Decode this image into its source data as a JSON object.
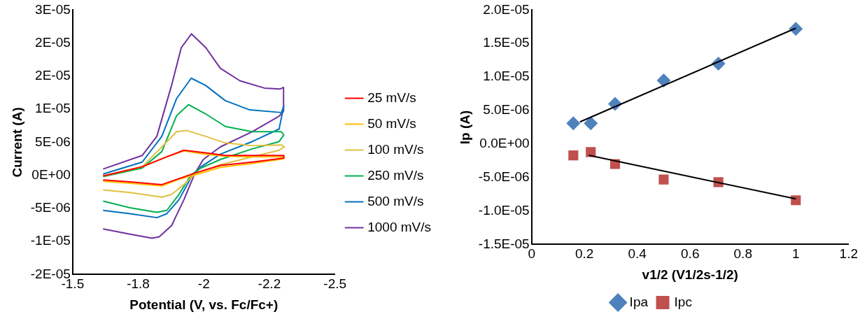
{
  "chart_data": [
    {
      "type": "line",
      "xlabel": "Potential (V, vs. Fc/Fc+)",
      "ylabel": "Current (A)",
      "xlim": [
        -1.5,
        -2.5
      ],
      "xticks": [
        -1.5,
        {
          "value": -1.75,
          "label": "-1.8"
        },
        -2,
        {
          "value": -2.25,
          "label": "-2.2"
        },
        -2.5
      ],
      "ylim": [
        -1.5e-05,
        2.5e-05
      ],
      "yticks": [
        {
          "value": -1.5e-05,
          "label": "-2E-05"
        },
        {
          "value": -1e-05,
          "label": "-1E-05"
        },
        {
          "value": -5e-06,
          "label": "-5E-06"
        },
        {
          "value": 0,
          "label": "0E+00"
        },
        {
          "value": 5e-06,
          "label": "5E-06"
        },
        {
          "value": 1e-05,
          "label": "1E-05"
        },
        {
          "value": 1.5e-05,
          "label": "2E-05"
        },
        {
          "value": 2e-05,
          "label": "2E-05"
        },
        {
          "value": 2.5e-05,
          "label": "3E-05"
        }
      ],
      "grid": false,
      "legend": "right",
      "marker": "none",
      "line_style": "solid",
      "series": [
        {
          "name": "25 mV/s",
          "color": "#ff0000",
          "x": [
            -1.616,
            -1.765,
            -1.859,
            -1.924,
            -2.007,
            -2.082,
            -2.184,
            -2.305,
            -2.305,
            -2.184,
            -2.063,
            -1.97,
            -1.905,
            -1.84,
            -1.719,
            -1.616
          ],
          "values": [
            -1e-07,
            1.3e-06,
            2.8e-06,
            3.8e-06,
            3.4e-06,
            3e-06,
            3e-06,
            3e-06,
            2.6e-06,
            2e-06,
            1.5e-06,
            4e-07,
            -5e-07,
            -1.4e-06,
            -1e-06,
            -7e-07
          ]
        },
        {
          "name": "50 mV/s",
          "color": "#ffc000",
          "x": [
            -1.616,
            -1.765,
            -1.859,
            -1.924,
            -2.007,
            -2.082,
            -2.184,
            -2.305,
            -2.305,
            -2.184,
            -2.063,
            -1.97,
            -1.905,
            -1.84,
            -1.719,
            -1.616
          ],
          "values": [
            -1e-07,
            1.3e-06,
            2.8e-06,
            3.7e-06,
            3.2e-06,
            2.9e-06,
            2.8e-06,
            2.8e-06,
            2.5e-06,
            1.8e-06,
            1.2e-06,
            1e-07,
            -6e-07,
            -1.6e-06,
            -1.2e-06,
            -9e-07
          ]
        },
        {
          "name": "100 mV/s",
          "color": "#e0c040",
          "x": [
            -1.616,
            -1.765,
            -1.84,
            -1.896,
            -1.933,
            -2.007,
            -2.082,
            -2.184,
            -2.296,
            -2.307,
            -2.287,
            -2.184,
            -2.063,
            -1.97,
            -1.924,
            -1.877,
            -1.84,
            -1.719,
            -1.616
          ],
          "values": [
            -1e-07,
            1.3e-06,
            4.3e-06,
            6.6e-06,
            6.8e-06,
            5.9e-06,
            4.9e-06,
            4.5e-06,
            4.6e-06,
            4.3e-06,
            3.8e-06,
            2.8e-06,
            1.6e-06,
            3e-07,
            -1.4e-06,
            -2.9e-06,
            -3.3e-06,
            -2.6e-06,
            -2.2e-06
          ]
        },
        {
          "name": "250 mV/s",
          "color": "#00b050",
          "x": [
            -1.616,
            -1.765,
            -1.84,
            -1.896,
            -1.942,
            -2.007,
            -2.082,
            -2.184,
            -2.296,
            -2.305,
            -2.287,
            -2.184,
            -2.063,
            -1.989,
            -1.952,
            -1.905,
            -1.859,
            -1.821,
            -1.719,
            -1.616
          ],
          "values": [
            -2e-07,
            1.1e-06,
            3.6e-06,
            9e-06,
            1.07e-05,
            9.3e-06,
            7.4e-06,
            6.6e-06,
            6.6e-06,
            6.1e-06,
            5.1e-06,
            4e-06,
            2.4e-06,
            1.1e-06,
            1e-07,
            -2.9e-06,
            -5.3e-06,
            -5.6e-06,
            -4.9e-06,
            -3.9e-06
          ]
        },
        {
          "name": "500 mV/s",
          "color": "#0070c0",
          "x": [
            -1.616,
            -1.765,
            -1.84,
            -1.896,
            -1.952,
            -2.007,
            -2.082,
            -2.175,
            -2.296,
            -2.305,
            -2.287,
            -2.184,
            -2.063,
            -1.989,
            -1.952,
            -1.905,
            -1.859,
            -1.821,
            -1.719,
            -1.616
          ],
          "values": [
            2e-07,
            2e-06,
            5.9e-06,
            1.16e-05,
            1.47e-05,
            1.36e-05,
            1.13e-05,
            9.9e-06,
            9.5e-06,
            1.05e-05,
            7e-06,
            5.1e-06,
            3.2e-06,
            1.3e-06,
            -3e-07,
            -3.7e-06,
            -5.8e-06,
            -6.4e-06,
            -5.8e-06,
            -5.3e-06
          ]
        },
        {
          "name": "1000 mV/s",
          "color": "#7030a0",
          "x": [
            -1.616,
            -1.765,
            -1.821,
            -1.877,
            -1.914,
            -1.953,
            -2.008,
            -2.063,
            -2.138,
            -2.231,
            -2.291,
            -2.304,
            -2.304,
            -2.287,
            -2.184,
            -2.063,
            -1.998,
            -1.966,
            -1.924,
            -1.877,
            -1.83,
            -1.803,
            -1.719,
            -1.616
          ],
          "values": [
            9.6e-07,
            3e-06,
            5.9e-06,
            1.36e-05,
            1.93e-05,
            2.14e-05,
            1.93e-05,
            1.62e-05,
            1.43e-05,
            1.32e-05,
            1.305e-05,
            1.33e-05,
            9.7e-06,
            8.95e-06,
            6.6e-06,
            4.3e-06,
            2.4e-06,
            3e-07,
            -3.7e-06,
            -7.6e-06,
            -9.3e-06,
            -9.5e-06,
            -8.9e-06,
            -8.1e-06
          ]
        }
      ]
    },
    {
      "type": "scatter",
      "xlabel": "v1/2 (V1/2s-1/2)",
      "ylabel": "Ip (A)",
      "xlim": [
        0,
        1.2
      ],
      "xticks": [
        0,
        0.2,
        0.4,
        0.6,
        0.8,
        1,
        1.2
      ],
      "ylim": [
        -1.5e-05,
        2e-05
      ],
      "yticks": [
        {
          "value": -1.5e-05,
          "label": "-1.5E-05"
        },
        {
          "value": -1e-05,
          "label": "-1.0E-05"
        },
        {
          "value": -5e-06,
          "label": "-5.0E-06"
        },
        {
          "value": 0,
          "label": "0.0E+00"
        },
        {
          "value": 5e-06,
          "label": "5.0E-06"
        },
        {
          "value": 1e-05,
          "label": "1.0E-05"
        },
        {
          "value": 1.5e-05,
          "label": "1.5E-05"
        },
        {
          "value": 2e-05,
          "label": "2.0E-05"
        }
      ],
      "grid": false,
      "legend": "bottom",
      "series": [
        {
          "type": "line",
          "color": "#000000",
          "marker": "none",
          "x": [
            0.183,
            1
          ],
          "values": [
            3.3e-06,
            1.73e-05
          ]
        },
        {
          "type": "line",
          "color": "#000000",
          "marker": "none",
          "x": [
            0.217,
            1
          ],
          "values": [
            -1.7e-06,
            -8.2e-06
          ]
        },
        {
          "name": "Ipa",
          "type": "scatter",
          "color": "#4f81bd",
          "marker": "diamond",
          "x": [
            0.158,
            0.224,
            0.316,
            0.5,
            0.707,
            1
          ],
          "values": [
            3.1e-06,
            3.1e-06,
            6e-06,
            9.5e-06,
            1.2e-05,
            1.72e-05
          ]
        },
        {
          "name": "Ipc",
          "type": "scatter",
          "color": "#c0504d",
          "marker": "square",
          "x": [
            0.158,
            0.224,
            0.316,
            0.5,
            0.707,
            1
          ],
          "values": [
            -1.7e-06,
            -1.2e-06,
            -3e-06,
            -5.3e-06,
            -5.7e-06,
            -8.4e-06
          ]
        }
      ]
    }
  ]
}
